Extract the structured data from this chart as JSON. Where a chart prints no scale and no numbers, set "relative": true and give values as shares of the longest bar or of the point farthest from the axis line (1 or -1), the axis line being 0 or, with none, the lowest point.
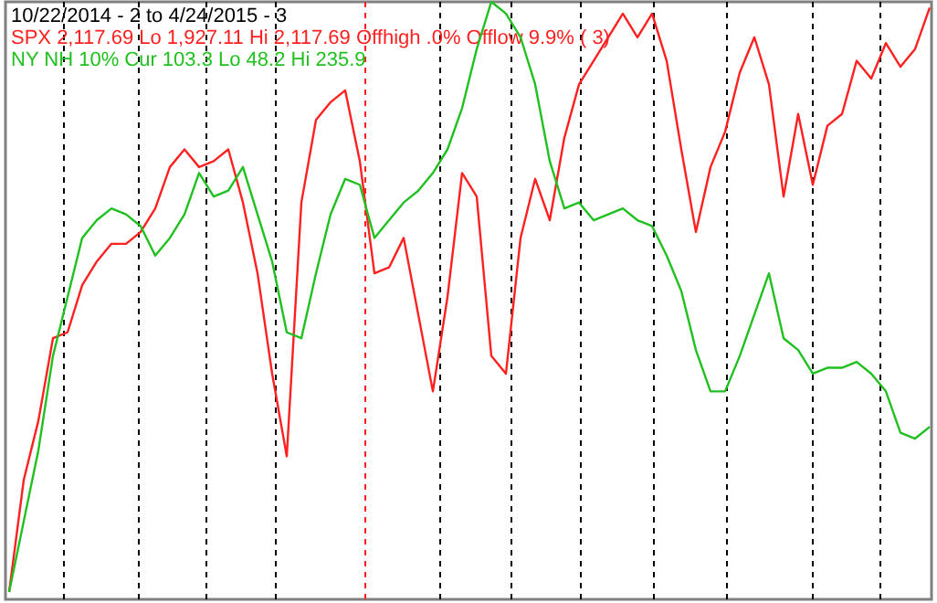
{
  "chart_data": {
    "type": "line",
    "title": "10/22/2014 - 2 to 4/24/2015 - 3",
    "relative": true,
    "legend": "top left",
    "categories": [
      null,
      null,
      null,
      null,
      null,
      null,
      null,
      null,
      null,
      null,
      null,
      null,
      null,
      null,
      null,
      null,
      null,
      null,
      null,
      null,
      null,
      null,
      null,
      null,
      null,
      null,
      null,
      null,
      null,
      null,
      null,
      null,
      null,
      null,
      null,
      null,
      null,
      null,
      null,
      null,
      null,
      null,
      null,
      null,
      null,
      null,
      null,
      null,
      null,
      null,
      null,
      null,
      null,
      null,
      null,
      null,
      null,
      null,
      null,
      null,
      null,
      null,
      null,
      null
    ],
    "series": [
      {
        "name": "SPX 2,117.69 Lo 1,927.11 Hi 2,117.69 Offhigh .0% Offlow 9.9% ( 3)",
        "color": "#ff2020",
        "values": [
          0,
          0.19,
          0.29,
          0.43,
          0.44,
          0.52,
          0.56,
          0.59,
          0.59,
          0.61,
          0.65,
          0.72,
          0.75,
          0.72,
          0.73,
          0.75,
          0.66,
          0.54,
          0.37,
          0.23,
          0.66,
          0.8,
          0.83,
          0.85,
          0.73,
          0.54,
          0.55,
          0.6,
          0.47,
          0.34,
          0.5,
          0.71,
          0.67,
          0.4,
          0.37,
          0.6,
          0.7,
          0.63,
          0.77,
          0.86,
          0.9,
          0.94,
          0.98,
          0.94,
          0.98,
          0.9,
          0.75,
          0.61,
          0.72,
          0.78,
          0.88,
          0.94,
          0.86,
          0.67,
          0.81,
          0.69,
          0.79,
          0.81,
          0.9,
          0.87,
          0.93,
          0.89,
          0.92,
          0.99
        ]
      },
      {
        "name": "NY NH 10% Cur 103.3 Lo 48.2 Hi 235.9",
        "color": "#20c020",
        "values": [
          0,
          0.12,
          0.24,
          0.4,
          0.5,
          0.6,
          0.63,
          0.65,
          0.64,
          0.62,
          0.57,
          0.6,
          0.64,
          0.71,
          0.67,
          0.68,
          0.72,
          0.64,
          0.56,
          0.44,
          0.43,
          0.54,
          0.64,
          0.7,
          0.69,
          0.6,
          0.63,
          0.66,
          0.68,
          0.71,
          0.75,
          0.82,
          0.92,
          1,
          0.98,
          0.94,
          0.86,
          0.73,
          0.65,
          0.66,
          0.63,
          0.64,
          0.65,
          0.63,
          0.62,
          0.57,
          0.51,
          0.41,
          0.34,
          0.34,
          0.4,
          0.47,
          0.54,
          0.43,
          0.41,
          0.37,
          0.38,
          0.38,
          0.39,
          0.37,
          0.34,
          0.27,
          0.26,
          0.28
        ]
      }
    ],
    "grid": "x"
  }
}
